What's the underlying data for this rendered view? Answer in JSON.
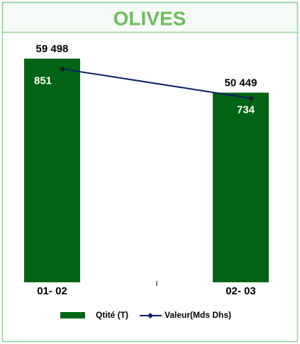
{
  "chart_data": {
    "type": "bar",
    "title": "OLIVES",
    "categories": [
      "01- 02",
      "02- 03"
    ],
    "series": [
      {
        "name": "Qtité (T)",
        "color": "#006414",
        "values": [
          59498,
          50449
        ],
        "value_labels": [
          "59 498",
          "50 449"
        ]
      },
      {
        "name": "Valeur(Mds Dhs)",
        "color": "#0b1f6e",
        "values": [
          851,
          734
        ],
        "axis": "y2",
        "type": "line"
      }
    ],
    "ylim": [
      0,
      60000
    ],
    "y2lim": [
      0,
      900
    ]
  }
}
